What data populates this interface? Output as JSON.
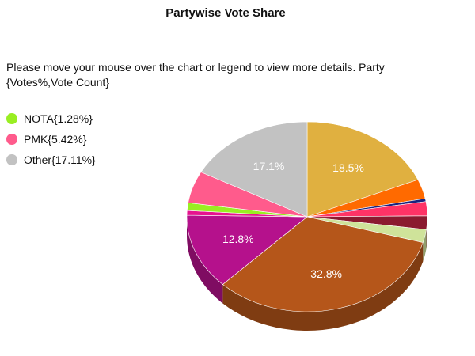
{
  "chart_data": {
    "type": "pie",
    "title": "Partywise Vote Share",
    "instructions": "Please move your mouse over the chart or legend to view more details. Party {Votes%,Vote Count}",
    "legend": [
      {
        "label": "NOTA{1.28%}",
        "color": "#99ee22"
      },
      {
        "label": "PMK{5.42%}",
        "color": "#ff5b8c"
      },
      {
        "label": "Other{17.11%}",
        "color": "#c2c2c2"
      }
    ],
    "slices": [
      {
        "value": 18.5,
        "color": "#e0b040",
        "label": "18.5%"
      },
      {
        "value": 3.3,
        "color": "#ff6a00",
        "label": ""
      },
      {
        "value": 0.5,
        "color": "#1a237e",
        "label": ""
      },
      {
        "value": 2.4,
        "color": "#ff3366",
        "label": ""
      },
      {
        "value": 2.3,
        "color": "#8b1a2f",
        "label": ""
      },
      {
        "value": 2.2,
        "color": "#cfe39a",
        "label": ""
      },
      {
        "value": 32.8,
        "color": "#b5561a",
        "label": "32.8%"
      },
      {
        "value": 12.8,
        "color": "#b5118c",
        "label": "12.8%"
      },
      {
        "value": 0.8,
        "color": "#e6138f",
        "label": ""
      },
      {
        "value": 1.3,
        "color": "#99ee22",
        "label": ""
      },
      {
        "value": 5.4,
        "color": "#ff5b8c",
        "label": ""
      },
      {
        "value": 17.1,
        "color": "#c2c2c2",
        "label": "17.1%"
      }
    ]
  }
}
